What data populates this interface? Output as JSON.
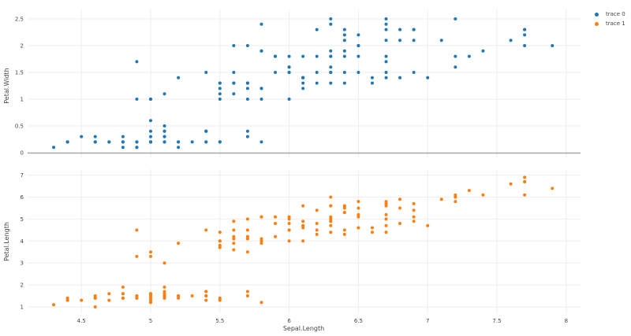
{
  "chart_data": {
    "type": "scatter",
    "layout": "two vertically stacked subplots sharing x axis",
    "xlabel": "Sepal.Length",
    "x_ticks": [
      "4.5",
      "5",
      "5.5",
      "6",
      "6.5",
      "7",
      "7.5",
      "8"
    ],
    "xlim": [
      4.1,
      8.1
    ],
    "grid": true,
    "legend_position": "top-right",
    "subplots": [
      {
        "name": "top",
        "ylabel": "Petal.Width",
        "y_ticks": [
          "0",
          "0.5",
          "1",
          "1.5",
          "2",
          "2.5"
        ],
        "ylim": [
          0,
          2.6
        ],
        "trace": "trace 0",
        "color": "#1f77b4"
      },
      {
        "name": "bottom",
        "ylabel": "Petal.Length",
        "y_ticks": [
          "1",
          "2",
          "3",
          "4",
          "5",
          "6",
          "7"
        ],
        "ylim": [
          0.7,
          7.2
        ],
        "trace": "trace 1",
        "color": "#ff7f0e"
      }
    ],
    "series": [
      {
        "name": "trace 0",
        "color": "#1f77b4",
        "x": [
          5.1,
          4.9,
          4.7,
          4.6,
          5.0,
          5.4,
          4.6,
          5.0,
          4.4,
          4.9,
          5.4,
          4.8,
          4.8,
          4.3,
          5.8,
          5.7,
          5.4,
          5.1,
          5.7,
          5.1,
          5.4,
          5.1,
          4.6,
          5.1,
          4.8,
          5.0,
          5.0,
          5.2,
          5.2,
          4.7,
          4.8,
          5.4,
          5.2,
          5.5,
          4.9,
          5.0,
          5.5,
          4.9,
          4.4,
          5.1,
          5.0,
          4.5,
          4.4,
          5.0,
          5.1,
          4.8,
          5.1,
          4.6,
          5.3,
          5.0,
          7.0,
          6.4,
          6.9,
          5.5,
          6.5,
          5.7,
          6.3,
          4.9,
          6.6,
          5.2,
          5.0,
          5.9,
          6.0,
          6.1,
          5.6,
          6.7,
          5.6,
          5.8,
          6.2,
          5.6,
          5.9,
          6.1,
          6.3,
          6.1,
          6.4,
          6.6,
          6.8,
          6.7,
          6.0,
          5.7,
          5.5,
          5.5,
          5.8,
          6.0,
          5.4,
          6.0,
          6.7,
          6.3,
          5.6,
          5.5,
          5.5,
          6.1,
          5.8,
          5.0,
          5.6,
          5.7,
          5.7,
          6.2,
          5.1,
          5.7,
          6.3,
          5.8,
          7.1,
          6.3,
          6.5,
          7.6,
          4.9,
          7.3,
          6.7,
          7.2,
          6.5,
          6.4,
          6.8,
          5.7,
          5.8,
          6.4,
          6.5,
          7.7,
          7.7,
          6.0,
          6.9,
          5.6,
          7.7,
          6.3,
          6.7,
          7.2,
          6.2,
          6.1,
          6.4,
          7.2,
          7.4,
          7.9,
          6.4,
          6.3,
          6.1,
          7.7,
          6.3,
          6.4,
          6.0,
          6.9,
          6.7,
          6.9,
          5.8,
          6.8,
          6.7,
          6.7,
          6.3,
          6.5,
          6.2,
          5.9
        ],
        "y": [
          0.2,
          0.2,
          0.2,
          0.2,
          0.2,
          0.4,
          0.3,
          0.2,
          0.2,
          0.1,
          0.2,
          0.2,
          0.1,
          0.1,
          0.2,
          0.4,
          0.4,
          0.3,
          0.3,
          0.3,
          0.2,
          0.4,
          0.2,
          0.5,
          0.2,
          0.2,
          0.4,
          0.2,
          0.2,
          0.2,
          0.2,
          0.4,
          0.1,
          0.2,
          0.2,
          0.2,
          0.2,
          0.1,
          0.2,
          0.2,
          0.3,
          0.3,
          0.2,
          0.6,
          0.4,
          0.3,
          0.2,
          0.2,
          0.2,
          0.2,
          1.4,
          1.5,
          1.5,
          1.3,
          1.5,
          1.3,
          1.6,
          1.0,
          1.3,
          1.4,
          1.0,
          1.5,
          1.0,
          1.4,
          1.3,
          1.4,
          1.5,
          1.0,
          1.5,
          1.1,
          1.8,
          1.3,
          1.5,
          1.2,
          1.3,
          1.4,
          1.4,
          1.7,
          1.5,
          1.0,
          1.1,
          1.0,
          1.2,
          1.6,
          1.5,
          1.6,
          1.5,
          1.3,
          1.3,
          1.3,
          1.2,
          1.4,
          1.2,
          1.0,
          1.3,
          1.2,
          1.3,
          1.3,
          1.1,
          1.3,
          2.5,
          1.9,
          2.1,
          1.8,
          2.2,
          2.1,
          1.7,
          1.8,
          1.8,
          2.5,
          2.0,
          1.9,
          2.1,
          2.0,
          2.4,
          2.3,
          1.8,
          2.2,
          2.3,
          1.5,
          2.3,
          2.0,
          2.0,
          1.8,
          2.1,
          1.8,
          1.8,
          1.8,
          2.1,
          1.6,
          1.9,
          2.0,
          2.2,
          1.5,
          1.4,
          2.3,
          2.4,
          1.8,
          1.8,
          2.1,
          2.4,
          2.3,
          1.9,
          2.3,
          2.5,
          2.3,
          1.9,
          2.0,
          2.3,
          1.8
        ]
      },
      {
        "name": "trace 1",
        "color": "#ff7f0e",
        "x": [
          5.1,
          4.9,
          4.7,
          4.6,
          5.0,
          5.4,
          4.6,
          5.0,
          4.4,
          4.9,
          5.4,
          4.8,
          4.8,
          4.3,
          5.8,
          5.7,
          5.4,
          5.1,
          5.7,
          5.1,
          5.4,
          5.1,
          4.6,
          5.1,
          4.8,
          5.0,
          5.0,
          5.2,
          5.2,
          4.7,
          4.8,
          5.4,
          5.2,
          5.5,
          4.9,
          5.0,
          5.5,
          4.9,
          4.4,
          5.1,
          5.0,
          4.5,
          4.4,
          5.0,
          5.1,
          4.8,
          5.1,
          4.6,
          5.3,
          5.0,
          7.0,
          6.4,
          6.9,
          5.5,
          6.5,
          5.7,
          6.3,
          4.9,
          6.6,
          5.2,
          5.0,
          5.9,
          6.0,
          6.1,
          5.6,
          6.7,
          5.6,
          5.8,
          6.2,
          5.6,
          5.9,
          6.1,
          6.3,
          6.1,
          6.4,
          6.6,
          6.8,
          6.7,
          6.0,
          5.7,
          5.5,
          5.5,
          5.8,
          6.0,
          5.4,
          6.0,
          6.7,
          6.3,
          5.6,
          5.5,
          5.5,
          6.1,
          5.8,
          5.0,
          5.6,
          5.7,
          5.7,
          6.2,
          5.1,
          5.7,
          6.3,
          5.8,
          7.1,
          6.3,
          6.5,
          7.6,
          4.9,
          7.3,
          6.7,
          7.2,
          6.5,
          6.4,
          6.8,
          5.7,
          5.8,
          6.4,
          6.5,
          7.7,
          7.7,
          6.0,
          6.9,
          5.6,
          7.7,
          6.3,
          6.7,
          7.2,
          6.2,
          6.1,
          6.4,
          7.2,
          7.4,
          7.9,
          6.4,
          6.3,
          6.1,
          7.7,
          6.3,
          6.4,
          6.0,
          6.9,
          6.7,
          6.9,
          5.8,
          6.8,
          6.7,
          6.7,
          6.3,
          6.5,
          6.2,
          5.9
        ],
        "y": [
          1.4,
          1.4,
          1.3,
          1.5,
          1.4,
          1.7,
          1.4,
          1.5,
          1.4,
          1.5,
          1.5,
          1.6,
          1.4,
          1.1,
          1.2,
          1.5,
          1.3,
          1.4,
          1.7,
          1.5,
          1.7,
          1.5,
          1.0,
          1.7,
          1.9,
          1.6,
          1.6,
          1.5,
          1.4,
          1.6,
          1.6,
          1.5,
          1.5,
          1.4,
          1.5,
          1.2,
          1.3,
          1.4,
          1.3,
          1.5,
          1.3,
          1.3,
          1.3,
          1.6,
          1.9,
          1.4,
          1.6,
          1.4,
          1.5,
          1.4,
          4.7,
          4.5,
          4.9,
          4.0,
          4.6,
          4.5,
          4.7,
          3.3,
          4.6,
          3.9,
          3.5,
          4.2,
          4.0,
          4.7,
          3.6,
          4.4,
          4.5,
          4.1,
          4.5,
          3.9,
          4.8,
          4.0,
          4.9,
          4.7,
          4.3,
          4.4,
          4.8,
          5.0,
          4.5,
          3.5,
          3.8,
          3.7,
          3.9,
          5.1,
          4.5,
          4.5,
          4.7,
          4.4,
          4.1,
          4.0,
          4.4,
          4.6,
          4.0,
          3.3,
          4.2,
          4.2,
          4.2,
          4.3,
          3.0,
          4.1,
          6.0,
          5.1,
          5.9,
          5.6,
          5.8,
          6.6,
          4.5,
          6.3,
          5.8,
          6.1,
          5.1,
          5.3,
          5.5,
          5.0,
          5.1,
          5.3,
          5.5,
          6.7,
          6.9,
          5.0,
          5.7,
          4.9,
          6.7,
          4.9,
          5.7,
          6.0,
          4.8,
          4.9,
          5.6,
          5.8,
          6.1,
          6.4,
          5.6,
          5.1,
          5.6,
          6.1,
          5.6,
          5.5,
          4.8,
          5.4,
          5.6,
          5.1,
          5.1,
          5.9,
          5.7,
          5.2,
          5.0,
          5.2,
          5.4,
          5.1
        ]
      }
    ]
  },
  "legend": {
    "items": [
      {
        "label": "trace 0",
        "color": "#1f77b4"
      },
      {
        "label": "trace 1",
        "color": "#ff7f0e"
      }
    ]
  }
}
